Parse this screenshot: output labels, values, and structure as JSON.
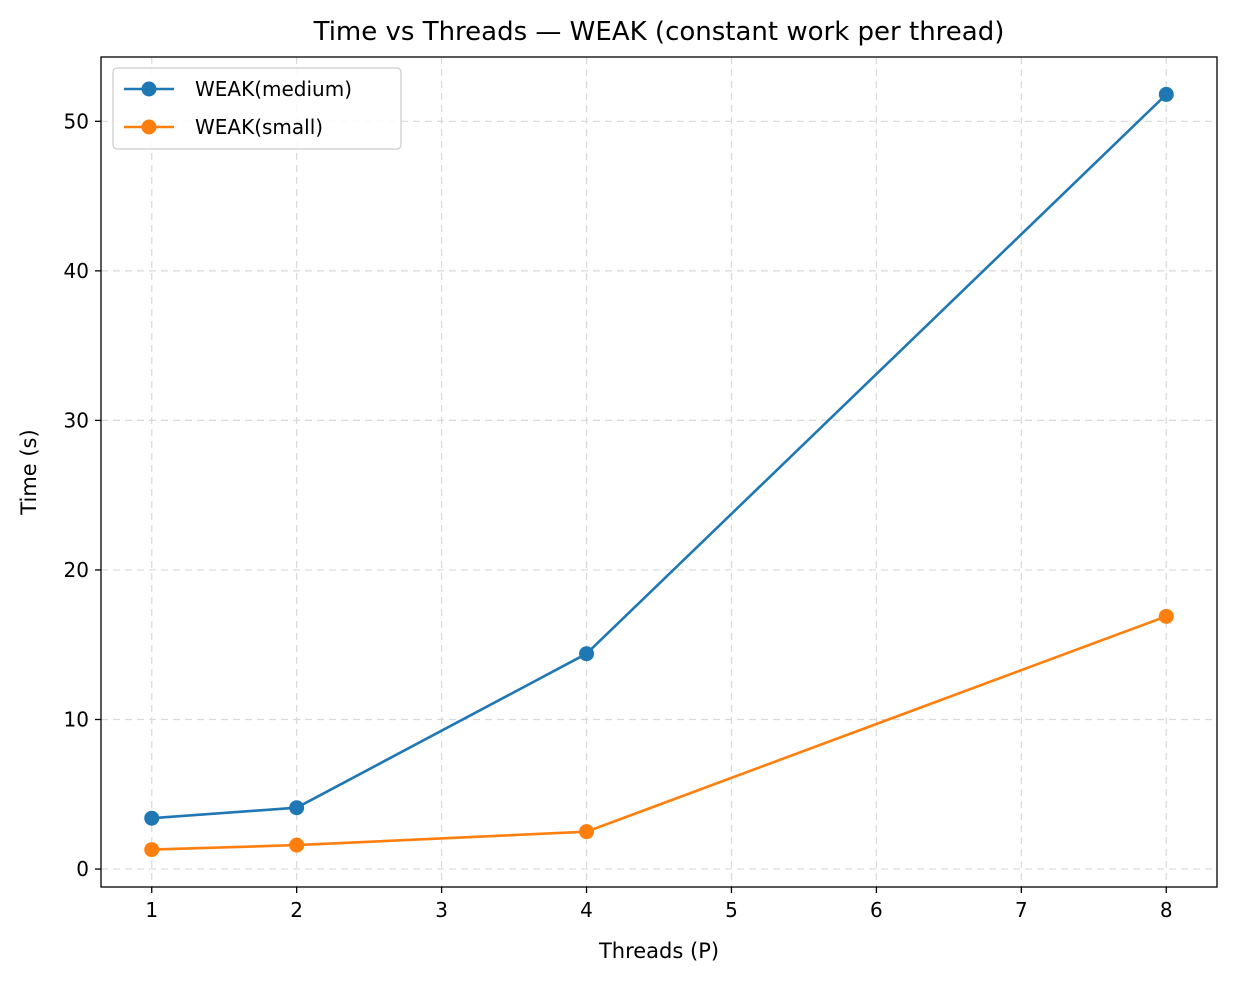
{
  "chart_data": {
    "type": "line",
    "title": "Time vs Threads — WEAK (constant work per thread)",
    "xlabel": "Threads (P)",
    "ylabel": "Time (s)",
    "xlim": [
      0.65,
      8.35
    ],
    "ylim": [
      -1.2,
      54.3
    ],
    "xticks": [
      1,
      2,
      3,
      4,
      5,
      6,
      7,
      8
    ],
    "yticks": [
      0,
      10,
      20,
      30,
      40,
      50
    ],
    "grid": true,
    "legend_position": "upper-left",
    "series": [
      {
        "name": "WEAK(medium)",
        "color": "#1f77b4",
        "x": [
          1,
          2,
          4,
          8
        ],
        "y": [
          3.4,
          4.1,
          14.4,
          51.8
        ]
      },
      {
        "name": "WEAK(small)",
        "color": "#ff7f0e",
        "x": [
          1,
          2,
          4,
          8
        ],
        "y": [
          1.3,
          1.6,
          2.5,
          16.9
        ]
      }
    ]
  }
}
